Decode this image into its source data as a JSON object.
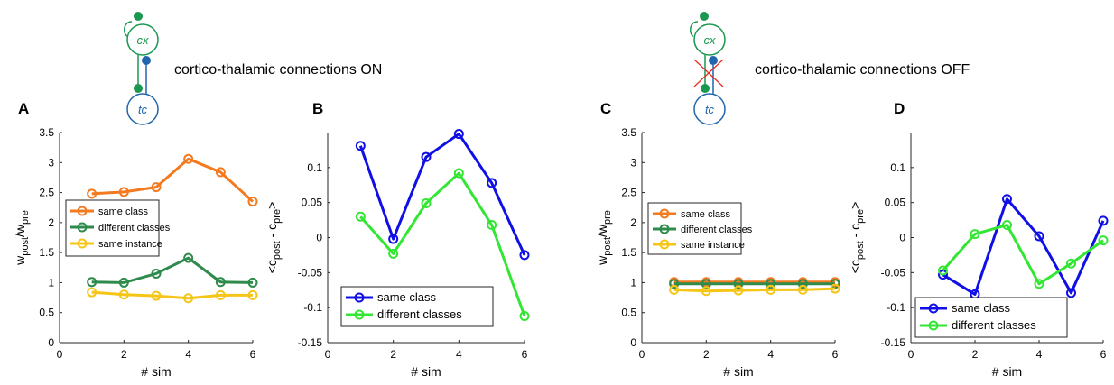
{
  "top_labels": {
    "left": "cortico-thalamic connections ON",
    "right": "cortico-thalamic connections OFF"
  },
  "nodes": {
    "cortex": "cx",
    "thalamus": "tc"
  },
  "colors": {
    "cx": "#1a9850",
    "tc": "#2166ac",
    "same_class_w": "#f47a20",
    "different_classes_w": "#2e8b4c",
    "same_instance_w": "#f5c518",
    "same_class_c": "#1010e6",
    "different_classes_c": "#33e633",
    "cross": "#e8281e"
  },
  "chart_data": [
    {
      "panel": "A",
      "type": "line",
      "xlabel": "# sim",
      "ylabel": "w_post/w_pre",
      "xlim": [
        0,
        6
      ],
      "ylim": [
        0,
        3.5
      ],
      "xticks": [
        "0",
        "2",
        "4",
        "6"
      ],
      "yticks": [
        "0",
        "0.5",
        "1",
        "1.5",
        "2",
        "2.5",
        "3",
        "3.5"
      ],
      "x": [
        1,
        2,
        3,
        4,
        5,
        6
      ],
      "legend": "mid-left",
      "series": [
        {
          "name": "same class",
          "color": "#f47a20",
          "values": [
            2.48,
            2.51,
            2.59,
            3.06,
            2.84,
            2.35
          ]
        },
        {
          "name": "different classes",
          "color": "#2e8b4c",
          "values": [
            1.01,
            1.0,
            1.15,
            1.41,
            1.01,
            1.0
          ]
        },
        {
          "name": "same instance",
          "color": "#f5c518",
          "values": [
            0.84,
            0.8,
            0.78,
            0.74,
            0.79,
            0.79
          ]
        }
      ]
    },
    {
      "panel": "B",
      "type": "line",
      "xlabel": "# sim",
      "ylabel": "<c_post - c_pre>",
      "xlim": [
        0,
        6
      ],
      "ylim": [
        -0.15,
        0.15
      ],
      "xticks": [
        "0",
        "2",
        "4",
        "6"
      ],
      "yticks": [
        "-0.15",
        "-0.1",
        "-0.05",
        "0",
        "0.05",
        "0.1"
      ],
      "x": [
        1,
        2,
        3,
        4,
        5,
        6
      ],
      "legend": "bottom",
      "series": [
        {
          "name": "same class",
          "color": "#1010e6",
          "values": [
            0.131,
            -0.002,
            0.115,
            0.148,
            0.078,
            -0.025
          ]
        },
        {
          "name": "different classes",
          "color": "#33e633",
          "values": [
            0.03,
            -0.023,
            0.049,
            0.092,
            0.018,
            -0.112
          ]
        }
      ]
    },
    {
      "panel": "C",
      "type": "line",
      "xlabel": "# sim",
      "ylabel": "w_post/w_pre",
      "xlim": [
        0,
        6
      ],
      "ylim": [
        0,
        3.5
      ],
      "xticks": [
        "0",
        "2",
        "4",
        "6"
      ],
      "yticks": [
        "0",
        "0.5",
        "1",
        "1.5",
        "2",
        "2.5",
        "3",
        "3.5"
      ],
      "x": [
        1,
        2,
        3,
        4,
        5,
        6
      ],
      "legend": "mid-left",
      "series": [
        {
          "name": "same class",
          "color": "#f47a20",
          "values": [
            1.01,
            1.01,
            1.01,
            1.01,
            1.01,
            1.01
          ]
        },
        {
          "name": "different classes",
          "color": "#2e8b4c",
          "values": [
            0.98,
            0.98,
            0.98,
            0.98,
            0.98,
            0.98
          ]
        },
        {
          "name": "same instance",
          "color": "#f5c518",
          "values": [
            0.88,
            0.86,
            0.87,
            0.88,
            0.88,
            0.9
          ]
        }
      ]
    },
    {
      "panel": "D",
      "type": "line",
      "xlabel": "# sim",
      "ylabel": "<c_post - c_pre>",
      "xlim": [
        0,
        6
      ],
      "ylim": [
        -0.15,
        0.15
      ],
      "xticks": [
        "0",
        "2",
        "4",
        "6"
      ],
      "yticks": [
        "-0.15",
        "-0.1",
        "-0.05",
        "0",
        "0.05",
        "0.1"
      ],
      "x": [
        1,
        2,
        3,
        4,
        5,
        6
      ],
      "legend": "bottom",
      "series": [
        {
          "name": "same class",
          "color": "#1010e6",
          "values": [
            -0.053,
            -0.081,
            0.055,
            0.002,
            -0.079,
            0.024
          ]
        },
        {
          "name": "different classes",
          "color": "#33e633",
          "values": [
            -0.047,
            0.005,
            0.018,
            -0.066,
            -0.037,
            -0.004
          ]
        }
      ]
    }
  ]
}
